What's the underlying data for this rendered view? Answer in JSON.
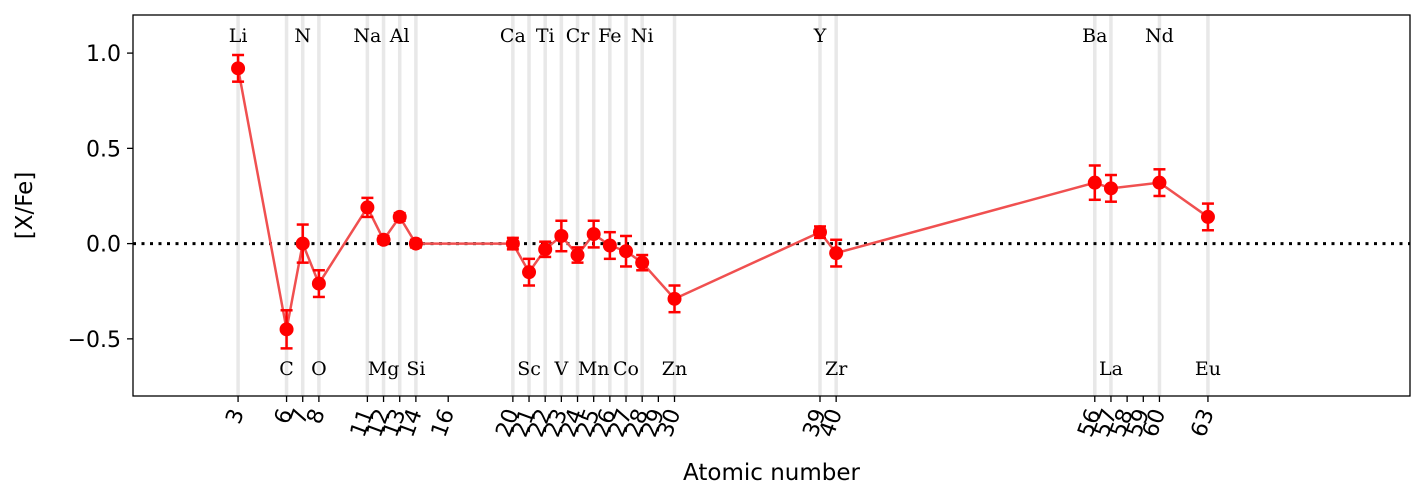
{
  "chart_data": {
    "type": "scatter",
    "xlabel": "Atomic number",
    "ylabel": "[X/Fe]",
    "xlim": [
      -3.5,
      75.5
    ],
    "ylim": [
      -0.8,
      1.2
    ],
    "yticks": [
      -0.5,
      0.0,
      0.5,
      1.0
    ],
    "ytick_labels": [
      "−0.5",
      "0.0",
      "0.5",
      "1.0"
    ],
    "xticks": [
      3,
      6,
      7,
      8,
      11,
      12,
      13,
      14,
      16,
      20,
      21,
      22,
      23,
      24,
      25,
      26,
      27,
      28,
      29,
      30,
      39,
      40,
      56,
      57,
      58,
      59,
      60,
      63
    ],
    "reference_line": 0.0,
    "grid": false,
    "colors": {
      "series": "#ff0000",
      "line": "#f05050",
      "guide": "#e8e8e8",
      "reference": "#000000"
    },
    "series": [
      {
        "points": [
          {
            "x": 3,
            "y": 0.92,
            "err": 0.07
          },
          {
            "x": 6,
            "y": -0.45,
            "err": 0.1
          },
          {
            "x": 7,
            "y": 0.0,
            "err": 0.1
          },
          {
            "x": 8,
            "y": -0.21,
            "err": 0.07
          },
          {
            "x": 11,
            "y": 0.19,
            "err": 0.05
          },
          {
            "x": 12,
            "y": 0.02,
            "err": 0.02
          },
          {
            "x": 13,
            "y": 0.14,
            "err": 0.02
          },
          {
            "x": 14,
            "y": 0.0,
            "err": 0.02
          },
          {
            "x": 20,
            "y": 0.0,
            "err": 0.03
          },
          {
            "x": 21,
            "y": -0.15,
            "err": 0.07
          },
          {
            "x": 22,
            "y": -0.03,
            "err": 0.04
          },
          {
            "x": 23,
            "y": 0.04,
            "err": 0.08
          },
          {
            "x": 24,
            "y": -0.06,
            "err": 0.04
          },
          {
            "x": 25,
            "y": 0.05,
            "err": 0.07
          },
          {
            "x": 26,
            "y": -0.01,
            "err": 0.07
          },
          {
            "x": 27,
            "y": -0.04,
            "err": 0.08
          },
          {
            "x": 28,
            "y": -0.1,
            "err": 0.04
          },
          {
            "x": 30,
            "y": -0.29,
            "err": 0.07
          },
          {
            "x": 39,
            "y": 0.06,
            "err": 0.03
          },
          {
            "x": 40,
            "y": -0.05,
            "err": 0.07
          },
          {
            "x": 56,
            "y": 0.32,
            "err": 0.09
          },
          {
            "x": 57,
            "y": 0.29,
            "err": 0.07
          },
          {
            "x": 60,
            "y": 0.32,
            "err": 0.07
          },
          {
            "x": 63,
            "y": 0.14,
            "err": 0.07
          }
        ]
      }
    ],
    "element_labels_top": [
      {
        "x": 3,
        "text": "Li"
      },
      {
        "x": 7,
        "text": "N"
      },
      {
        "x": 11,
        "text": "Na"
      },
      {
        "x": 13,
        "text": "Al"
      },
      {
        "x": 20,
        "text": "Ca"
      },
      {
        "x": 22,
        "text": "Ti"
      },
      {
        "x": 24,
        "text": "Cr"
      },
      {
        "x": 26,
        "text": "Fe"
      },
      {
        "x": 28,
        "text": "Ni"
      },
      {
        "x": 39,
        "text": "Y"
      },
      {
        "x": 56,
        "text": "Ba"
      },
      {
        "x": 60,
        "text": "Nd"
      }
    ],
    "element_labels_bottom": [
      {
        "x": 6,
        "text": "C"
      },
      {
        "x": 8,
        "text": "O"
      },
      {
        "x": 12,
        "text": "Mg"
      },
      {
        "x": 14,
        "text": "Si"
      },
      {
        "x": 21,
        "text": "Sc"
      },
      {
        "x": 23,
        "text": "V"
      },
      {
        "x": 25,
        "text": "Mn"
      },
      {
        "x": 27,
        "text": "Co"
      },
      {
        "x": 30,
        "text": "Zn"
      },
      {
        "x": 40,
        "text": "Zr"
      },
      {
        "x": 57,
        "text": "La"
      },
      {
        "x": 63,
        "text": "Eu"
      }
    ]
  }
}
